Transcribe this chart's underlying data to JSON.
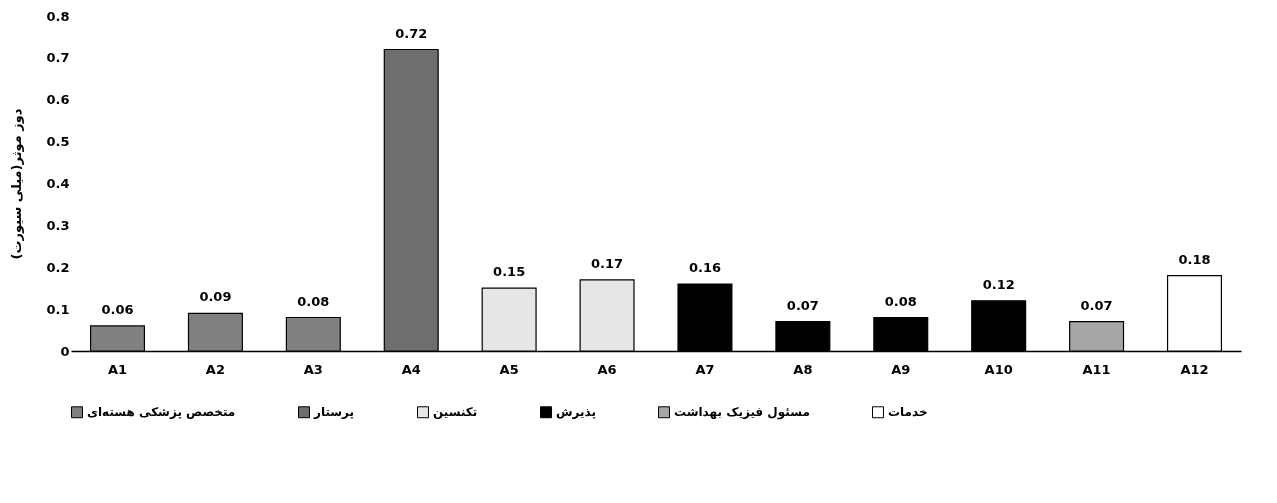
{
  "chart_data": {
    "type": "bar",
    "ylabel": "دوز موثر(میلی سیورت)",
    "categories": [
      "A1",
      "A2",
      "A3",
      "A4",
      "A5",
      "A6",
      "A7",
      "A8",
      "A9",
      "A10",
      "A11",
      "A12"
    ],
    "series": [
      {
        "name": "متخصص پزشکی هسته‌ای",
        "color": "#808080",
        "values": [
          0.06,
          0.09,
          0.08,
          null,
          null,
          null,
          null,
          null,
          null,
          null,
          null,
          null
        ]
      },
      {
        "name": "پرستار",
        "color": "#6e6e6e",
        "values": [
          null,
          null,
          null,
          0.72,
          null,
          null,
          null,
          null,
          null,
          null,
          null,
          null
        ]
      },
      {
        "name": "تکنسین",
        "color": "#e6e6e6",
        "values": [
          null,
          null,
          null,
          null,
          0.15,
          0.17,
          null,
          null,
          null,
          null,
          null,
          null
        ]
      },
      {
        "name": "پذیرش",
        "color": "#000000",
        "values": [
          null,
          null,
          null,
          null,
          null,
          null,
          0.16,
          0.07,
          0.08,
          0.12,
          null,
          null
        ]
      },
      {
        "name": "مسئول فیزیک بهداشت",
        "color": "#a6a6a6",
        "values": [
          null,
          null,
          null,
          null,
          null,
          null,
          null,
          null,
          null,
          null,
          0.07,
          null
        ]
      },
      {
        "name": "خدمات",
        "color": "#ffffff",
        "values": [
          null,
          null,
          null,
          null,
          null,
          null,
          null,
          null,
          null,
          null,
          null,
          0.18
        ]
      }
    ],
    "ylim": [
      0,
      0.8
    ],
    "yticks": [
      0,
      0.1,
      0.2,
      0.3,
      0.4,
      0.5,
      0.6,
      0.7,
      0.8
    ],
    "data_labels": true,
    "legend": "bottom",
    "grid": false
  }
}
